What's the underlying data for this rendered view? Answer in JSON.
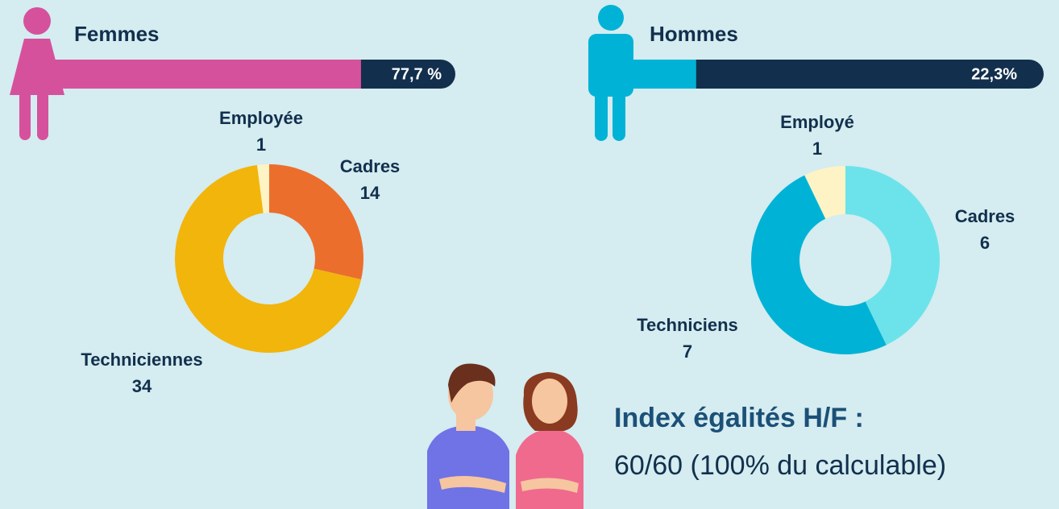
{
  "chart_data": [
    {
      "type": "progress",
      "title": "Femmes",
      "values": [
        77.7
      ],
      "value_labels": [
        "77,7 %"
      ],
      "color": "#d6519c",
      "track_color": "#12304d",
      "xlim": [
        0,
        100
      ]
    },
    {
      "type": "progress",
      "title": "Hommes",
      "values": [
        22.3
      ],
      "value_labels": [
        "22,3%"
      ],
      "color": "#00b3d6",
      "track_color": "#12304d",
      "xlim": [
        0,
        100
      ]
    },
    {
      "type": "pie",
      "donut": true,
      "categories": [
        "Cadres",
        "Techniciennes",
        "Employée"
      ],
      "values": [
        14,
        34,
        1
      ],
      "colors": [
        "#ec6e2c",
        "#f2b50c",
        "#fdf3c4"
      ]
    },
    {
      "type": "pie",
      "donut": true,
      "categories": [
        "Cadres",
        "Techniciens",
        "Employé"
      ],
      "values": [
        6,
        7,
        1
      ],
      "colors": [
        "#6ce3ea",
        "#00b3d6",
        "#fdf3c4"
      ]
    }
  ],
  "index": {
    "title": "Index égalités H/F :",
    "text": "60/60 (100% du calculable)"
  }
}
